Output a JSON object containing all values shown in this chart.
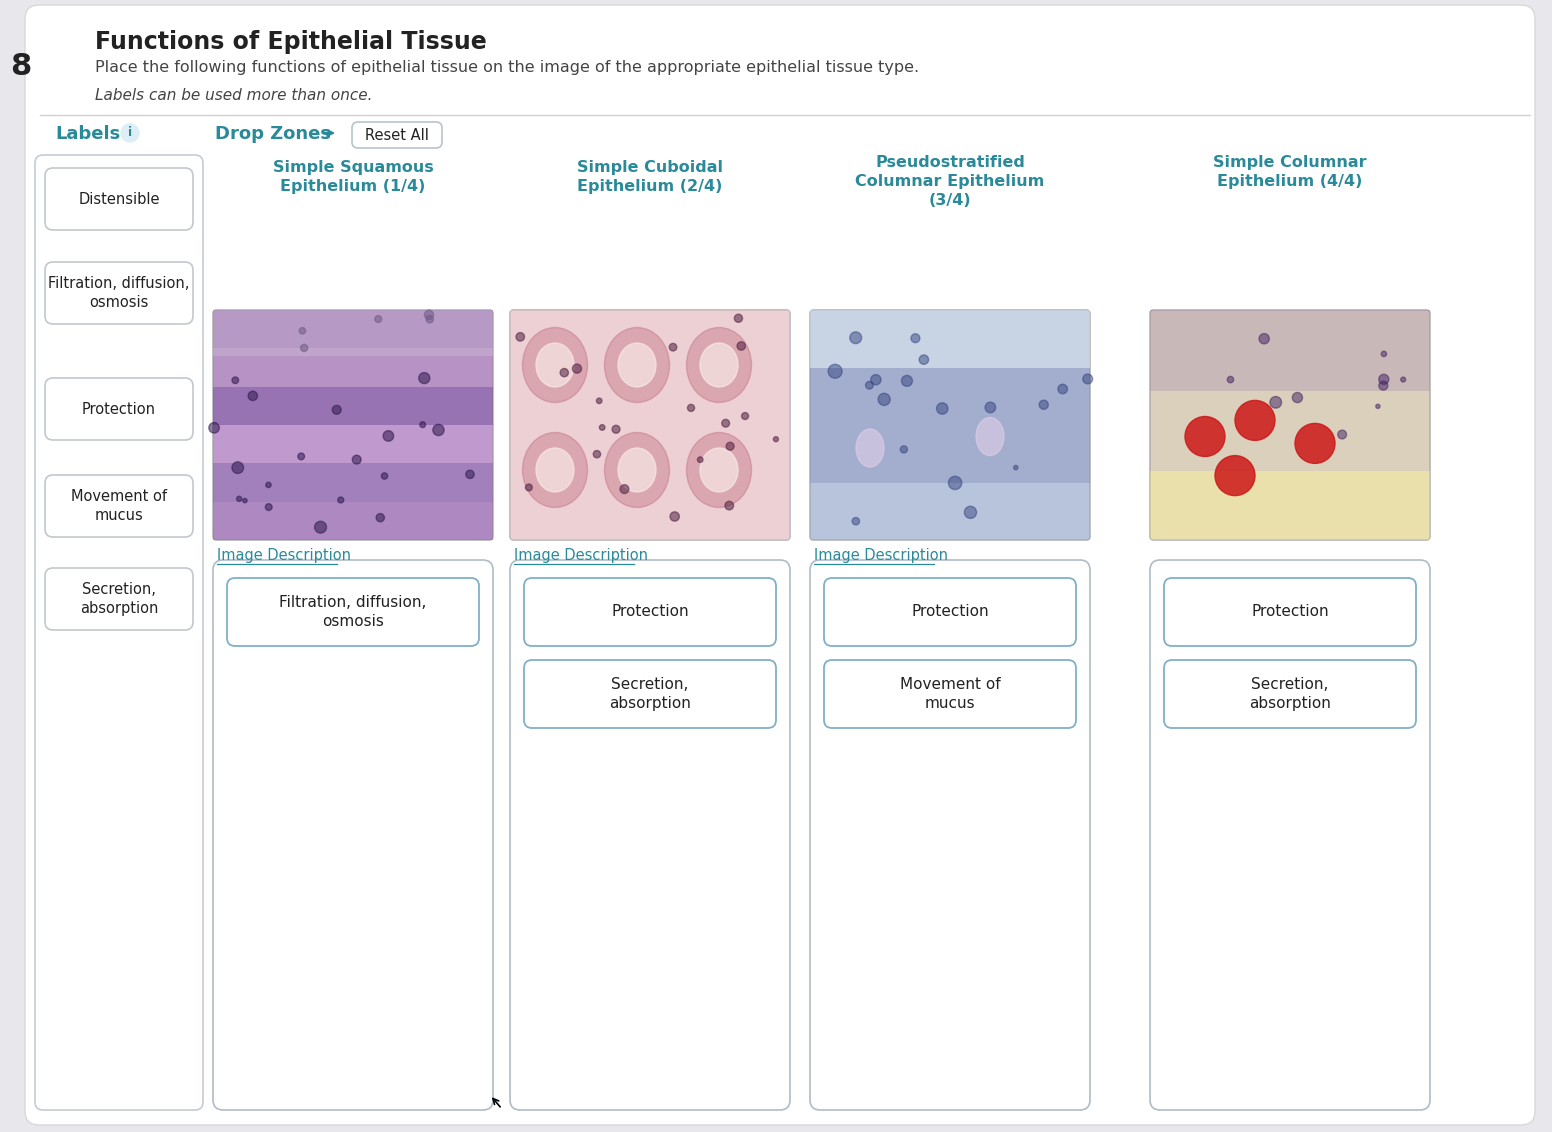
{
  "bg_color": "#e8e8ec",
  "white": "#ffffff",
  "title": "Functions of Epithelial Tissue",
  "subtitle": "Place the following functions of epithelial tissue on the image of the appropriate epithelial tissue type.",
  "note": "Labels can be used more than once.",
  "left_col_header": "Labels",
  "right_col_header": "Drop Zones",
  "reset_btn": "Reset All",
  "left_labels": [
    "Distensible",
    "Filtration, diffusion,\nosmosis",
    "Protection",
    "Movement of\nmucus",
    "Secretion,\nabsorption"
  ],
  "col_headers": [
    "Simple Squamous\nEpithelium (1/4)",
    "Simple Cuboidal\nEpithelium (2/4)",
    "Pseudostratified\nColumnar Epithelium\n(3/4)",
    "Simple Columnar\nEpithelium (4/4)"
  ],
  "drop_labels": [
    [
      "Filtration, diffusion,\nosmosis"
    ],
    [
      "Protection",
      "Secretion,\nabsorption"
    ],
    [
      "Protection",
      "Movement of\nmucus"
    ],
    [
      "Protection",
      "Secretion,\nabsorption"
    ]
  ],
  "image_desc_cols": [
    0,
    1,
    2
  ],
  "teal_color": "#2a8a9a",
  "label_border_color": "#c0c8d0",
  "drop_border_color": "#80b0c8",
  "text_dark": "#222222",
  "text_medium": "#444444",
  "number_label": "8"
}
